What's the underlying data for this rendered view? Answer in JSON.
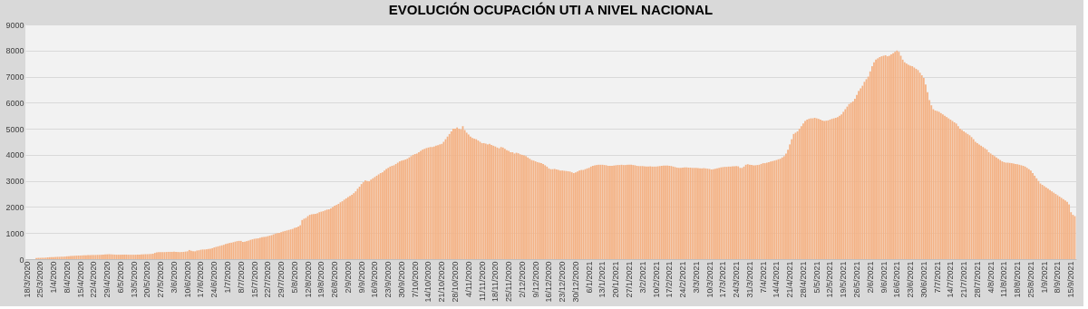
{
  "chart_data": {
    "type": "bar",
    "title": "EVOLUCIÓN  OCUPACIÓN UTI A NIVEL NACIONAL",
    "categories": [
      "18/3/2020",
      null,
      null,
      null,
      null,
      null,
      null,
      "25/3/2020",
      null,
      null,
      null,
      null,
      null,
      null,
      "1/4/2020",
      null,
      null,
      null,
      null,
      null,
      null,
      "8/4/2020",
      null,
      null,
      null,
      null,
      null,
      null,
      "15/4/2020",
      null,
      null,
      null,
      null,
      null,
      null,
      "22/4/2020",
      null,
      null,
      null,
      null,
      null,
      null,
      "29/4/2020",
      null,
      null,
      null,
      null,
      null,
      null,
      "6/5/2020",
      null,
      null,
      null,
      null,
      null,
      null,
      "13/5/2020",
      null,
      null,
      null,
      null,
      null,
      null,
      "20/5/2020",
      null,
      null,
      null,
      null,
      null,
      null,
      "27/5/2020",
      null,
      null,
      null,
      null,
      null,
      null,
      "3/6/2020",
      null,
      null,
      null,
      null,
      null,
      null,
      "10/6/2020",
      null,
      null,
      null,
      null,
      null,
      null,
      "17/6/2020",
      null,
      null,
      null,
      null,
      null,
      null,
      "24/6/2020",
      null,
      null,
      null,
      null,
      null,
      null,
      "1/7/2020",
      null,
      null,
      null,
      null,
      null,
      null,
      "8/7/2020",
      null,
      null,
      null,
      null,
      null,
      null,
      "15/7/2020",
      null,
      null,
      null,
      null,
      null,
      null,
      "22/7/2020",
      null,
      null,
      null,
      null,
      null,
      null,
      "29/7/2020",
      null,
      null,
      null,
      null,
      null,
      null,
      "5/8/2020",
      null,
      null,
      null,
      null,
      null,
      null,
      "12/8/2020",
      null,
      null,
      null,
      null,
      null,
      null,
      "19/8/2020",
      null,
      null,
      null,
      null,
      null,
      null,
      "26/8/2020",
      null,
      null,
      null,
      null,
      null,
      null,
      "2/9/2020",
      null,
      null,
      null,
      null,
      null,
      null,
      "9/9/2020",
      null,
      null,
      null,
      null,
      null,
      null,
      "16/9/2020",
      null,
      null,
      null,
      null,
      null,
      null,
      "23/9/2020",
      null,
      null,
      null,
      null,
      null,
      null,
      "30/9/2020",
      null,
      null,
      null,
      null,
      null,
      null,
      "7/10/2020",
      null,
      null,
      null,
      null,
      null,
      null,
      "14/10/2020",
      null,
      null,
      null,
      null,
      null,
      null,
      "21/10/2020",
      null,
      null,
      null,
      null,
      null,
      null,
      "28/10/2020",
      null,
      null,
      null,
      null,
      null,
      null,
      "4/11/2020",
      null,
      null,
      null,
      null,
      null,
      null,
      "11/11/2020",
      null,
      null,
      null,
      null,
      null,
      null,
      "18/11/2020",
      null,
      null,
      null,
      null,
      null,
      null,
      "25/11/2020",
      null,
      null,
      null,
      null,
      null,
      null,
      "2/12/2020",
      null,
      null,
      null,
      null,
      null,
      null,
      "9/12/2020",
      null,
      null,
      null,
      null,
      null,
      null,
      "16/12/2020",
      null,
      null,
      null,
      null,
      null,
      null,
      "23/12/2020",
      null,
      null,
      null,
      null,
      null,
      null,
      "30/12/2020",
      null,
      null,
      null,
      null,
      null,
      null,
      "6/1/2021",
      null,
      null,
      null,
      null,
      null,
      null,
      "13/1/2021",
      null,
      null,
      null,
      null,
      null,
      null,
      "20/1/2021",
      null,
      null,
      null,
      null,
      null,
      null,
      "27/1/2021",
      null,
      null,
      null,
      null,
      null,
      null,
      "3/2/2021",
      null,
      null,
      null,
      null,
      null,
      null,
      "10/2/2021",
      null,
      null,
      null,
      null,
      null,
      null,
      "17/2/2021",
      null,
      null,
      null,
      null,
      null,
      null,
      "24/2/2021",
      null,
      null,
      null,
      null,
      null,
      null,
      "3/3/2021",
      null,
      null,
      null,
      null,
      null,
      null,
      "10/3/2021",
      null,
      null,
      null,
      null,
      null,
      null,
      "17/3/2021",
      null,
      null,
      null,
      null,
      null,
      null,
      "24/3/2021",
      null,
      null,
      null,
      null,
      null,
      null,
      "31/3/2021",
      null,
      null,
      null,
      null,
      null,
      null,
      "7/4/2021",
      null,
      null,
      null,
      null,
      null,
      null,
      "14/4/2021",
      null,
      null,
      null,
      null,
      null,
      null,
      "21/4/2021",
      null,
      null,
      null,
      null,
      null,
      null,
      "28/4/2021",
      null,
      null,
      null,
      null,
      null,
      null,
      "5/5/2021",
      null,
      null,
      null,
      null,
      null,
      null,
      "12/5/2021",
      null,
      null,
      null,
      null,
      null,
      null,
      "19/5/2021",
      null,
      null,
      null,
      null,
      null,
      null,
      "26/5/2021",
      null,
      null,
      null,
      null,
      null,
      null,
      "2/6/2021",
      null,
      null,
      null,
      null,
      null,
      null,
      "9/6/2021",
      null,
      null,
      null,
      null,
      null,
      null,
      "16/6/2021",
      null,
      null,
      null,
      null,
      null,
      null,
      "23/6/2021",
      null,
      null,
      null,
      null,
      null,
      null,
      "30/6/2021",
      null,
      null,
      null,
      null,
      null,
      null,
      "7/7/2021",
      null,
      null,
      null,
      null,
      null,
      null,
      "14/7/2021",
      null,
      null,
      null,
      null,
      null,
      null,
      "21/7/2021",
      null,
      null,
      null,
      null,
      null,
      null,
      "28/7/2021",
      null,
      null,
      null,
      null,
      null,
      null,
      "4/8/2021",
      null,
      null,
      null,
      null,
      null,
      null,
      "11/8/2021",
      null,
      null,
      null,
      null,
      null,
      null,
      "18/8/2021",
      null,
      null,
      null,
      null,
      null,
      null,
      "25/8/2021",
      null,
      null,
      null,
      null,
      null,
      null,
      "1/9/2021",
      null,
      null,
      null,
      null,
      null,
      null,
      "8/9/2021",
      null,
      null,
      null,
      null,
      null,
      null,
      "15/9/2021",
      null,
      null
    ],
    "values": [
      null,
      null,
      null,
      null,
      null,
      40,
      50,
      50,
      55,
      55,
      60,
      70,
      75,
      80,
      80,
      85,
      90,
      90,
      95,
      95,
      100,
      110,
      115,
      120,
      125,
      130,
      135,
      140,
      140,
      145,
      150,
      150,
      155,
      155,
      160,
      160,
      160,
      165,
      165,
      170,
      175,
      180,
      185,
      190,
      185,
      180,
      175,
      170,
      170,
      170,
      170,
      175,
      175,
      170,
      170,
      170,
      170,
      170,
      175,
      175,
      180,
      185,
      190,
      190,
      195,
      200,
      210,
      240,
      260,
      265,
      270,
      270,
      270,
      275,
      280,
      280,
      280,
      285,
      280,
      275,
      270,
      275,
      280,
      290,
      300,
      350,
      320,
      300,
      300,
      330,
      340,
      360,
      370,
      370,
      380,
      390,
      400,
      420,
      450,
      470,
      490,
      510,
      530,
      550,
      580,
      600,
      620,
      630,
      650,
      670,
      690,
      700,
      700,
      660,
      670,
      690,
      710,
      740,
      760,
      780,
      790,
      800,
      820,
      840,
      850,
      860,
      880,
      900,
      920,
      950,
      980,
      1000,
      1010,
      1030,
      1060,
      1080,
      1100,
      1120,
      1140,
      1160,
      1200,
      1220,
      1250,
      1300,
      1500,
      1550,
      1580,
      1650,
      1700,
      1720,
      1730,
      1740,
      1760,
      1800,
      1820,
      1840,
      1870,
      1900,
      1910,
      1950,
      2000,
      2050,
      2080,
      2120,
      2180,
      2220,
      2280,
      2330,
      2380,
      2420,
      2470,
      2530,
      2600,
      2700,
      2780,
      2880,
      2950,
      3020,
      3000,
      2990,
      3050,
      3100,
      3150,
      3200,
      3250,
      3300,
      3330,
      3400,
      3460,
      3500,
      3550,
      3580,
      3600,
      3650,
      3700,
      3750,
      3780,
      3800,
      3820,
      3850,
      3900,
      3950,
      4000,
      4030,
      4050,
      4100,
      4150,
      4200,
      4230,
      4260,
      4280,
      4300,
      4300,
      4320,
      4350,
      4370,
      4400,
      4420,
      4500,
      4600,
      4700,
      4800,
      4900,
      5000,
      5000,
      5050,
      5000,
      4980,
      5100,
      4950,
      4850,
      4780,
      4700,
      4650,
      4620,
      4600,
      4550,
      4500,
      4450,
      4450,
      4430,
      4400,
      4420,
      4380,
      4350,
      4320,
      4280,
      4250,
      4300,
      4280,
      4230,
      4180,
      4150,
      4100,
      4100,
      4050,
      4080,
      4060,
      4020,
      4000,
      3980,
      3950,
      3900,
      3850,
      3800,
      3780,
      3750,
      3720,
      3700,
      3680,
      3650,
      3600,
      3550,
      3480,
      3450,
      3450,
      3460,
      3440,
      3420,
      3400,
      3400,
      3390,
      3380,
      3370,
      3360,
      3330,
      3300,
      3330,
      3360,
      3400,
      3420,
      3420,
      3450,
      3480,
      3500,
      3550,
      3580,
      3600,
      3610,
      3620,
      3620,
      3620,
      3610,
      3600,
      3580,
      3580,
      3580,
      3590,
      3600,
      3610,
      3610,
      3620,
      3610,
      3610,
      3620,
      3620,
      3620,
      3610,
      3600,
      3580,
      3570,
      3570,
      3570,
      3560,
      3550,
      3550,
      3560,
      3550,
      3550,
      3550,
      3560,
      3570,
      3580,
      3590,
      3590,
      3590,
      3580,
      3570,
      3550,
      3530,
      3510,
      3500,
      3500,
      3510,
      3520,
      3520,
      3510,
      3510,
      3500,
      3500,
      3500,
      3490,
      3480,
      3480,
      3490,
      3480,
      3470,
      3460,
      3440,
      3450,
      3470,
      3480,
      3500,
      3520,
      3530,
      3540,
      3540,
      3550,
      3550,
      3560,
      3560,
      3570,
      3560,
      3500,
      3500,
      3550,
      3620,
      3640,
      3620,
      3610,
      3600,
      3600,
      3610,
      3620,
      3650,
      3680,
      3680,
      3700,
      3720,
      3740,
      3760,
      3780,
      3800,
      3830,
      3850,
      3900,
      3950,
      4050,
      4200,
      4400,
      4600,
      4800,
      4850,
      4900,
      5000,
      5100,
      5200,
      5300,
      5350,
      5380,
      5400,
      5400,
      5420,
      5400,
      5380,
      5350,
      5320,
      5300,
      5310,
      5320,
      5350,
      5380,
      5400,
      5420,
      5450,
      5500,
      5550,
      5650,
      5750,
      5850,
      5950,
      6000,
      6050,
      6150,
      6300,
      6450,
      6550,
      6650,
      6800,
      6900,
      7000,
      7200,
      7400,
      7550,
      7650,
      7700,
      7750,
      7780,
      7800,
      7820,
      7780,
      7800,
      7850,
      7900,
      7950,
      8000,
      7950,
      7800,
      7650,
      7550,
      7500,
      7450,
      7420,
      7400,
      7350,
      7300,
      7250,
      7150,
      7050,
      6950,
      6700,
      6400,
      6100,
      5900,
      5750,
      5700,
      5680,
      5650,
      5600,
      5550,
      5500,
      5450,
      5400,
      5350,
      5300,
      5250,
      5200,
      5100,
      5000,
      4950,
      4900,
      4850,
      4800,
      4750,
      4680,
      4600,
      4500,
      4450,
      4400,
      4350,
      4300,
      4250,
      4200,
      4100,
      4050,
      4000,
      3950,
      3900,
      3850,
      3800,
      3750,
      3720,
      3700,
      3700,
      3690,
      3680,
      3670,
      3650,
      3640,
      3620,
      3600,
      3580,
      3550,
      3500,
      3450,
      3400,
      3300,
      3200,
      3100,
      3000,
      2900,
      2850,
      2800,
      2750,
      2700,
      2650,
      2600,
      2550,
      2500,
      2450,
      2400,
      2350,
      2300,
      2250,
      2200,
      2100,
      1800,
      1700,
      1650
    ],
    "color": "#f4b183",
    "ylim": [
      0,
      9000
    ],
    "yticks": [
      0,
      1000,
      2000,
      3000,
      4000,
      5000,
      6000,
      7000,
      8000,
      9000
    ],
    "grid": "y"
  }
}
